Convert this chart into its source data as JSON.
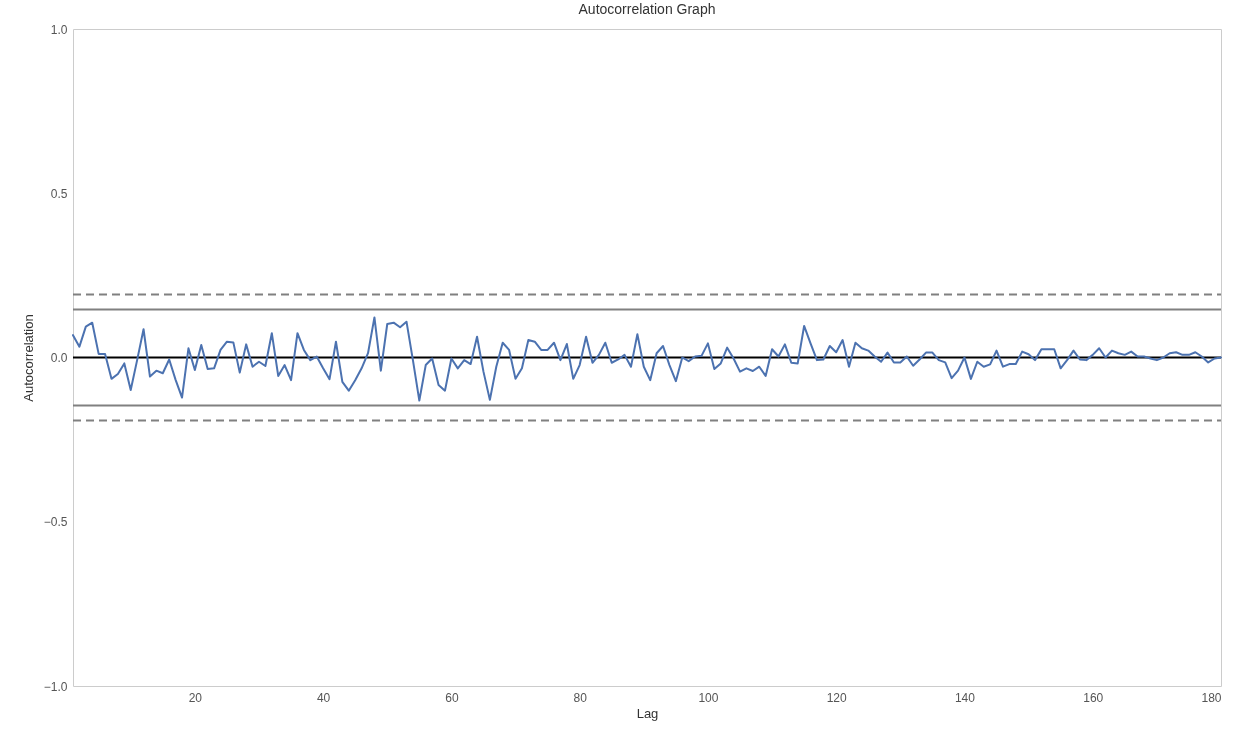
{
  "chart_data": {
    "type": "line",
    "title": "Autocorrelation Graph",
    "xlabel": "Lag",
    "ylabel": "Autocorrelation",
    "x": [
      1,
      2,
      3,
      4,
      5,
      6,
      7,
      8,
      9,
      10,
      11,
      12,
      13,
      14,
      15,
      16,
      17,
      18,
      19,
      20,
      21,
      22,
      23,
      24,
      25,
      26,
      27,
      28,
      29,
      30,
      31,
      32,
      33,
      34,
      35,
      36,
      37,
      38,
      39,
      40,
      41,
      42,
      43,
      44,
      45,
      46,
      47,
      48,
      49,
      50,
      51,
      52,
      53,
      54,
      55,
      56,
      57,
      58,
      59,
      60,
      61,
      62,
      63,
      64,
      65,
      66,
      67,
      68,
      69,
      70,
      71,
      72,
      73,
      74,
      75,
      76,
      77,
      78,
      79,
      80,
      81,
      82,
      83,
      84,
      85,
      86,
      87,
      88,
      89,
      90,
      91,
      92,
      93,
      94,
      95,
      96,
      97,
      98,
      99,
      100,
      101,
      102,
      103,
      104,
      105,
      106,
      107,
      108,
      109,
      110,
      111,
      112,
      113,
      114,
      115,
      116,
      117,
      118,
      119,
      120,
      121,
      122,
      123,
      124,
      125,
      126,
      127,
      128,
      129,
      130,
      131,
      132,
      133,
      134,
      135,
      136,
      137,
      138,
      139,
      140,
      141,
      142,
      143,
      144,
      145,
      146,
      147,
      148,
      149,
      150,
      151,
      152,
      153,
      154,
      155,
      156,
      157,
      158,
      159,
      160,
      161,
      162,
      163,
      164,
      165,
      166,
      167,
      168,
      169,
      170,
      171,
      172,
      173,
      174,
      175,
      176,
      177,
      178,
      179,
      180
    ],
    "series": [
      {
        "color": "#4c72b0",
        "line_style": "solid",
        "values": [
          0.068,
          0.033,
          0.094,
          0.106,
          0.011,
          0.011,
          -0.065,
          -0.05,
          -0.018,
          -0.099,
          -0.008,
          0.086,
          -0.058,
          -0.04,
          -0.048,
          -0.006,
          -0.068,
          -0.122,
          0.028,
          -0.038,
          0.038,
          -0.035,
          -0.033,
          0.023,
          0.048,
          0.046,
          -0.046,
          0.04,
          -0.028,
          -0.013,
          -0.026,
          0.074,
          -0.056,
          -0.023,
          -0.069,
          0.074,
          0.023,
          -0.008,
          0.003,
          -0.033,
          -0.066,
          0.048,
          -0.074,
          -0.101,
          -0.069,
          -0.033,
          0.013,
          0.122,
          -0.04,
          0.102,
          0.106,
          0.092,
          0.109,
          -0.008,
          -0.131,
          -0.023,
          -0.003,
          -0.084,
          -0.101,
          -0.003,
          -0.033,
          -0.008,
          -0.02,
          0.063,
          -0.043,
          -0.129,
          -0.028,
          0.045,
          0.023,
          -0.065,
          -0.033,
          0.053,
          0.048,
          0.023,
          0.023,
          0.045,
          -0.008,
          0.041,
          -0.065,
          -0.023,
          0.063,
          -0.016,
          0.008,
          0.045,
          -0.016,
          -0.006,
          0.008,
          -0.028,
          0.071,
          -0.028,
          -0.069,
          0.013,
          0.035,
          -0.023,
          -0.072,
          0,
          -0.011,
          0.003,
          0.005,
          0.043,
          -0.035,
          -0.018,
          0.03,
          -0.003,
          -0.043,
          -0.033,
          -0.041,
          -0.028,
          -0.056,
          0.025,
          0.003,
          0.04,
          -0.016,
          -0.018,
          0.096,
          0.043,
          -0.008,
          -0.006,
          0.035,
          0.016,
          0.053,
          -0.028,
          0.045,
          0.028,
          0.021,
          0.003,
          -0.013,
          0.015,
          -0.015,
          -0.015,
          0.003,
          -0.025,
          -0.006,
          0.015,
          0.015,
          -0.008,
          -0.015,
          -0.063,
          -0.04,
          0,
          -0.065,
          -0.013,
          -0.028,
          -0.021,
          0.021,
          -0.028,
          -0.02,
          -0.02,
          0.018,
          0.01,
          -0.008,
          0.025,
          0.025,
          0.025,
          -0.033,
          -0.008,
          0.021,
          -0.006,
          -0.008,
          0.008,
          0.028,
          0,
          0.021,
          0.013,
          0.008,
          0.018,
          0.003,
          0.003,
          -0.003,
          -0.008,
          0,
          0.013,
          0.016,
          0.008,
          0.008,
          0.016,
          0.003,
          -0.015,
          -0.003,
          0
        ]
      }
    ],
    "xlim": [
      1,
      180
    ],
    "xticks": [
      20,
      40,
      60,
      80,
      100,
      120,
      140,
      160,
      180
    ],
    "ylim": [
      -1,
      1
    ],
    "yticks": [
      {
        "value": -1,
        "label": "−1.0"
      },
      {
        "value": -0.5,
        "label": "−0.5"
      },
      {
        "value": 0,
        "label": "0.0"
      },
      {
        "value": 0.5,
        "label": "0.5"
      },
      {
        "value": 1,
        "label": "1.0"
      }
    ],
    "ref_lines": [
      {
        "axis": "y",
        "value": 0.192,
        "color": "#808080",
        "line_style": "dashed"
      },
      {
        "axis": "y",
        "value": 0.146,
        "color": "#808080",
        "line_style": "solid"
      },
      {
        "axis": "y",
        "value": 0,
        "color": "#000000",
        "line_style": "solid"
      },
      {
        "axis": "y",
        "value": -0.146,
        "color": "#808080",
        "line_style": "solid"
      },
      {
        "axis": "y",
        "value": -0.192,
        "color": "#808080",
        "line_style": "dashed"
      }
    ]
  }
}
